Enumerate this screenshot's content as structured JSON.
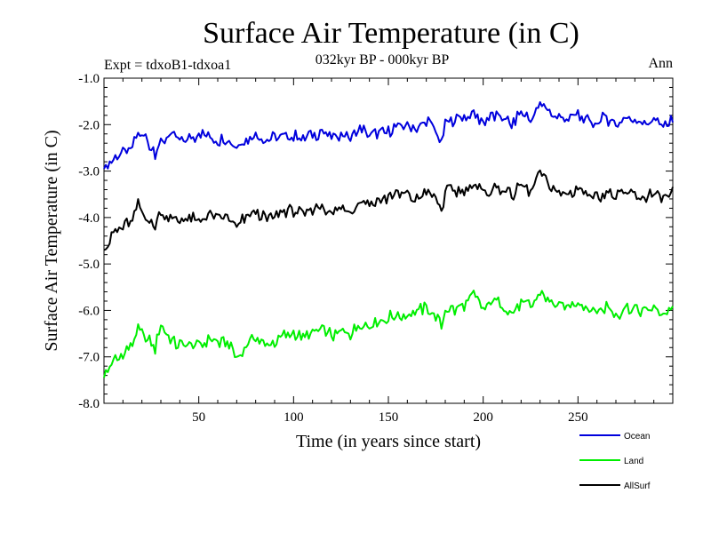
{
  "chart_data": {
    "type": "line",
    "title": "Surface Air Temperature (in C)",
    "subtitle": "032kyr BP - 000kyr BP",
    "experiment_label": "Expt = tdxoB1-tdxoa1",
    "season_label": "Ann",
    "xlabel": "Time (in years since start)",
    "ylabel": "Surface Air Temperature (in C)",
    "xlim": [
      0,
      300
    ],
    "ylim": [
      -8.0,
      -1.0
    ],
    "xticks": [
      50,
      100,
      150,
      200,
      250
    ],
    "yticks": [
      -1.0,
      -2.0,
      -3.0,
      -4.0,
      -5.0,
      -6.0,
      -7.0,
      -8.0
    ],
    "ytick_labels": [
      "-1.0",
      "-2.0",
      "-3.0",
      "-4.0",
      "-5.0",
      "-6.0",
      "-7.0",
      "-8.0"
    ],
    "legend_position": "below-right",
    "series": [
      {
        "name": "Ocean",
        "color": "#0000dd",
        "x": [
          0,
          2,
          5,
          10,
          15,
          18,
          22,
          27,
          30,
          35,
          40,
          45,
          50,
          55,
          60,
          65,
          70,
          75,
          80,
          85,
          90,
          95,
          100,
          105,
          110,
          115,
          120,
          125,
          130,
          135,
          140,
          145,
          150,
          155,
          160,
          165,
          170,
          175,
          178,
          180,
          185,
          190,
          195,
          200,
          205,
          210,
          215,
          220,
          225,
          230,
          235,
          240,
          245,
          250,
          255,
          260,
          265,
          270,
          275,
          280,
          285,
          290,
          295,
          300
        ],
        "values": [
          -2.95,
          -2.9,
          -2.75,
          -2.65,
          -2.5,
          -2.2,
          -2.3,
          -2.6,
          -2.4,
          -2.2,
          -2.35,
          -2.3,
          -2.2,
          -2.25,
          -2.35,
          -2.3,
          -2.5,
          -2.3,
          -2.2,
          -2.35,
          -2.3,
          -2.2,
          -2.25,
          -2.3,
          -2.2,
          -2.15,
          -2.3,
          -2.2,
          -2.3,
          -2.1,
          -2.2,
          -2.15,
          -2.15,
          -2.05,
          -2.0,
          -2.1,
          -1.9,
          -2.15,
          -2.4,
          -1.95,
          -1.9,
          -1.85,
          -1.75,
          -1.95,
          -1.8,
          -1.85,
          -2.0,
          -1.75,
          -1.9,
          -1.55,
          -1.75,
          -1.85,
          -1.9,
          -1.8,
          -1.95,
          -1.95,
          -1.85,
          -2.0,
          -1.85,
          -1.9,
          -1.95,
          -1.9,
          -2.05,
          -1.9
        ]
      },
      {
        "name": "Land",
        "color": "#00ee00",
        "x": [
          0,
          2,
          5,
          10,
          15,
          18,
          22,
          27,
          30,
          35,
          40,
          45,
          50,
          55,
          60,
          65,
          70,
          75,
          80,
          85,
          90,
          95,
          100,
          105,
          110,
          115,
          120,
          125,
          130,
          135,
          140,
          145,
          150,
          155,
          160,
          165,
          170,
          175,
          178,
          180,
          185,
          190,
          195,
          200,
          205,
          210,
          215,
          220,
          225,
          230,
          235,
          240,
          245,
          250,
          255,
          260,
          265,
          270,
          275,
          280,
          285,
          290,
          295,
          300
        ],
        "values": [
          -7.45,
          -7.3,
          -7.1,
          -6.95,
          -6.7,
          -6.4,
          -6.6,
          -6.8,
          -6.35,
          -6.65,
          -6.75,
          -6.7,
          -6.8,
          -6.6,
          -6.7,
          -6.65,
          -7.0,
          -6.75,
          -6.6,
          -6.75,
          -6.7,
          -6.55,
          -6.5,
          -6.6,
          -6.45,
          -6.4,
          -6.55,
          -6.45,
          -6.5,
          -6.3,
          -6.3,
          -6.25,
          -6.15,
          -6.1,
          -6.1,
          -6.05,
          -5.95,
          -6.1,
          -6.35,
          -5.95,
          -6.0,
          -5.9,
          -5.65,
          -6.0,
          -5.8,
          -5.9,
          -6.05,
          -5.85,
          -5.9,
          -5.6,
          -5.8,
          -5.9,
          -5.95,
          -5.8,
          -5.95,
          -6.05,
          -5.9,
          -6.1,
          -5.95,
          -5.95,
          -6.05,
          -5.95,
          -6.05,
          -5.95
        ]
      },
      {
        "name": "AllSurf",
        "color": "#000000",
        "x": [
          0,
          2,
          5,
          10,
          15,
          18,
          22,
          27,
          30,
          35,
          40,
          45,
          50,
          55,
          60,
          65,
          70,
          75,
          80,
          85,
          90,
          95,
          100,
          105,
          110,
          115,
          120,
          125,
          130,
          135,
          140,
          145,
          150,
          155,
          160,
          165,
          170,
          175,
          178,
          180,
          185,
          190,
          195,
          200,
          205,
          210,
          215,
          220,
          225,
          230,
          235,
          240,
          245,
          250,
          255,
          260,
          265,
          270,
          275,
          280,
          285,
          290,
          295,
          300
        ],
        "values": [
          -4.7,
          -4.55,
          -4.35,
          -4.2,
          -4.05,
          -3.75,
          -3.95,
          -4.2,
          -3.9,
          -4.0,
          -4.05,
          -4.0,
          -4.1,
          -3.95,
          -4.05,
          -4.0,
          -4.2,
          -4.0,
          -3.9,
          -4.05,
          -4.0,
          -3.85,
          -3.85,
          -3.95,
          -3.8,
          -3.75,
          -3.9,
          -3.8,
          -3.85,
          -3.65,
          -3.7,
          -3.65,
          -3.55,
          -3.5,
          -3.5,
          -3.6,
          -3.4,
          -3.6,
          -3.9,
          -3.45,
          -3.45,
          -3.4,
          -3.25,
          -3.5,
          -3.35,
          -3.4,
          -3.55,
          -3.3,
          -3.45,
          -3.05,
          -3.3,
          -3.45,
          -3.5,
          -3.35,
          -3.5,
          -3.55,
          -3.45,
          -3.6,
          -3.45,
          -3.5,
          -3.55,
          -3.5,
          -3.6,
          -3.45
        ]
      }
    ]
  }
}
